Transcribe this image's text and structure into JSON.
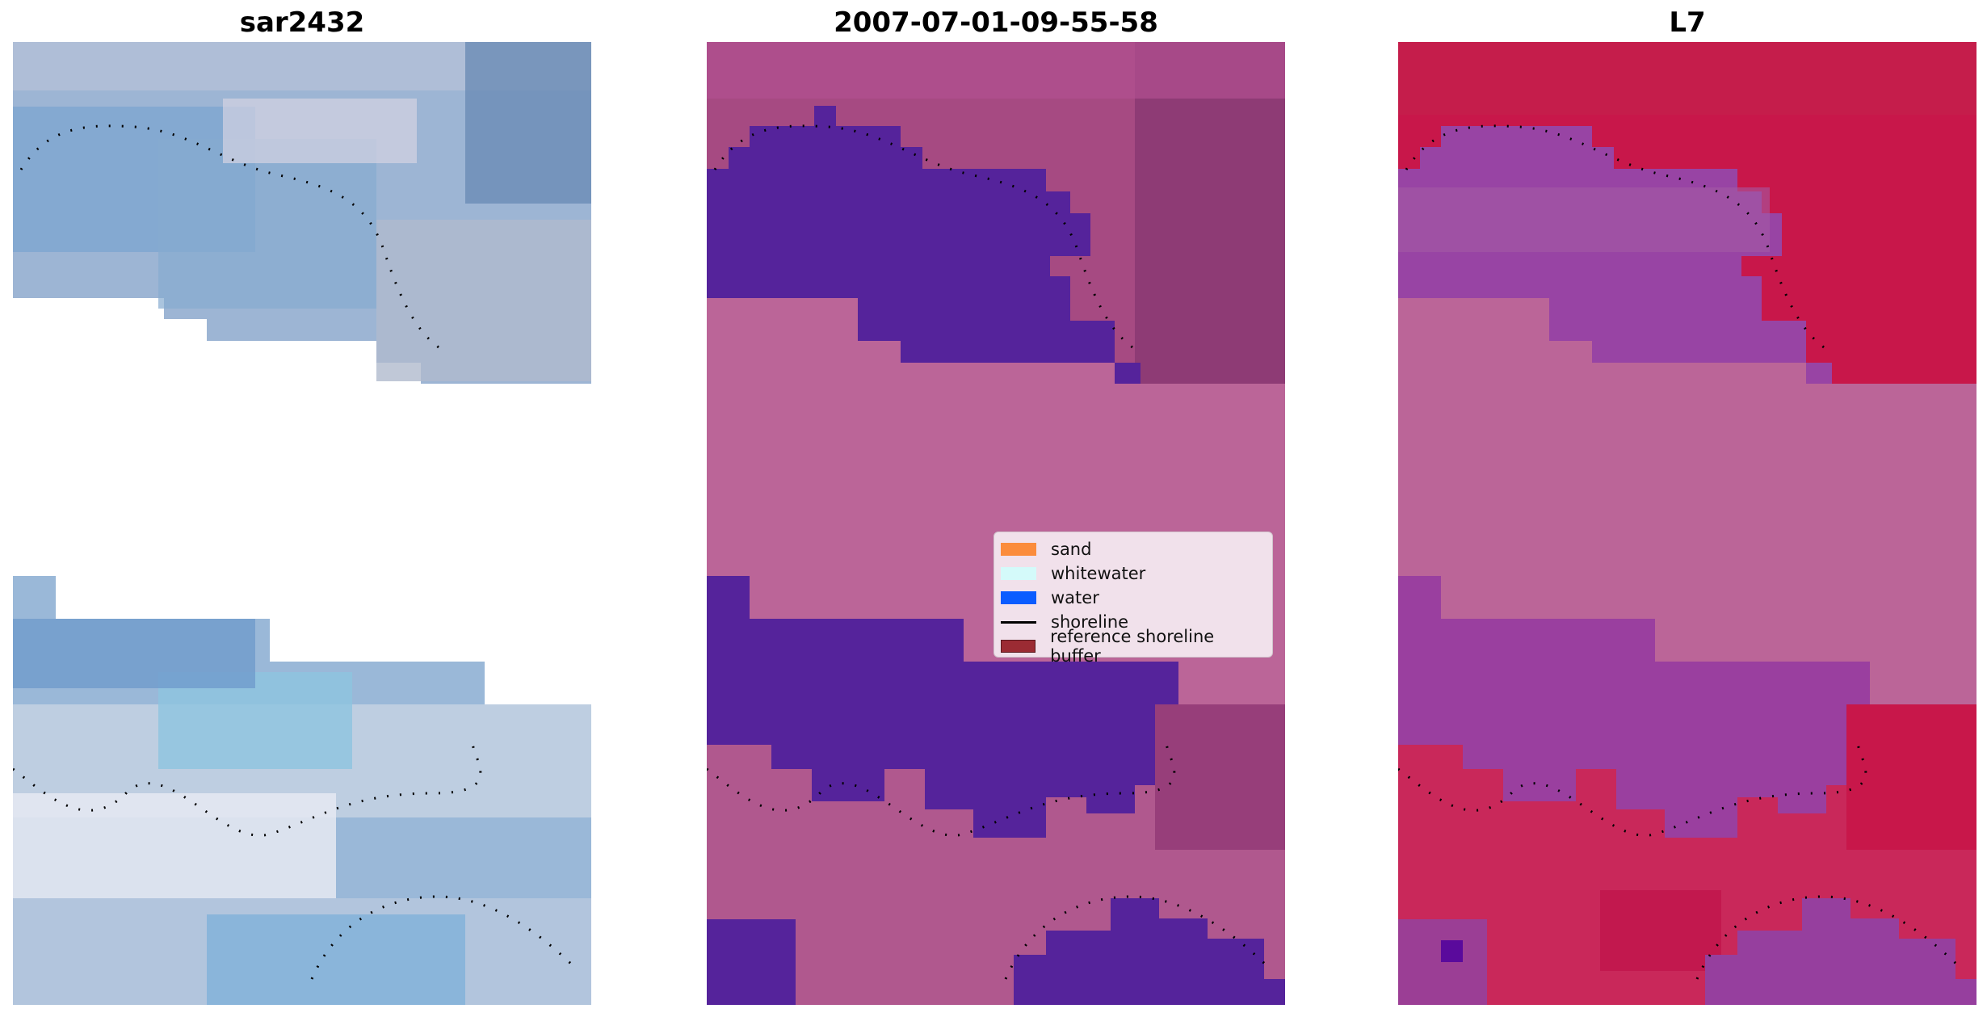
{
  "panels": [
    {
      "title": "sar2432"
    },
    {
      "title": "2007-07-01-09-55-58"
    },
    {
      "title": "L7"
    }
  ],
  "legend": {
    "items": [
      {
        "label": "sand",
        "color": "#fb8c3c",
        "kind": "patch"
      },
      {
        "label": "whitewater",
        "color": "#d4fafa",
        "kind": "patch"
      },
      {
        "label": "water",
        "color": "#0b5cff",
        "kind": "patch"
      },
      {
        "label": "shoreline",
        "color": "#000000",
        "kind": "line"
      },
      {
        "label": "reference shoreline buffer",
        "color": "#9b2b33",
        "kind": "patch"
      }
    ]
  },
  "colors": {
    "rgb_blue": "#7fa8cc",
    "rgb_light": "#c9d2e2",
    "class_water": "#55239b",
    "class_bg": "#bb6598",
    "class_land": "#9c4a80",
    "mndwi_red": "#c8174a",
    "mndwi_purple": "#9844a4",
    "mndwi_bg": "#bb6598"
  }
}
